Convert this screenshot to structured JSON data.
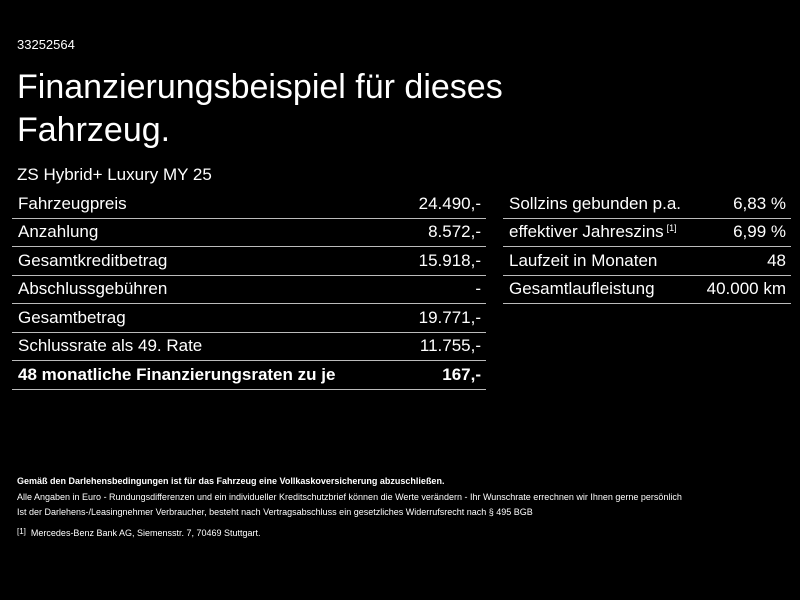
{
  "header": {
    "id": "33252564",
    "title": "Finanzierungsbeispiel für dieses Fahrzeug.",
    "subtitle": "ZS Hybrid+ Luxury MY 25"
  },
  "left_table": {
    "rows": [
      {
        "label": "Fahrzeugpreis",
        "value": "24.490,-"
      },
      {
        "label": "Anzahlung",
        "value": "8.572,-"
      },
      {
        "label": "Gesamtkreditbetrag",
        "value": "15.918,-"
      },
      {
        "label": "Abschlussgebühren",
        "value": "-"
      },
      {
        "label": "Gesamtbetrag",
        "value": "19.771,-"
      },
      {
        "label": "Schlussrate als 49. Rate",
        "value": "11.755,-"
      },
      {
        "label": "48 monatliche Finanzierungsraten zu je",
        "value": "167,-"
      }
    ]
  },
  "right_table": {
    "rows": [
      {
        "label": "Sollzins gebunden p.a.",
        "value": "6,83 %"
      },
      {
        "label": "effektiver Jahreszins",
        "note": "[1]",
        "value": "6,99 %"
      },
      {
        "label": "Laufzeit in Monaten",
        "value": "48"
      },
      {
        "label": "Gesamtlaufleistung",
        "value": "40.000 km"
      }
    ]
  },
  "footer": {
    "bold_note": "Gemäß den Darlehensbedingungen ist für das Fahrzeug eine Vollkaskoversicherung abzuschließen.",
    "lines": [
      "Alle Angaben in Euro - Rundungsdifferenzen und ein individueller Kreditschutzbrief können die Werte verändern - Ihr Wunschrate errechnen wir Ihnen gerne persönlich",
      "Ist der Darlehens-/Leasingnehmer Verbraucher, besteht nach Vertragsabschluss ein gesetzliches Widerrufsrecht nach § 495 BGB"
    ],
    "footnote": {
      "marker": "[1]",
      "text": "Mercedes-Benz Bank AG, Siemensstr. 7, 70469 Stuttgart."
    }
  }
}
